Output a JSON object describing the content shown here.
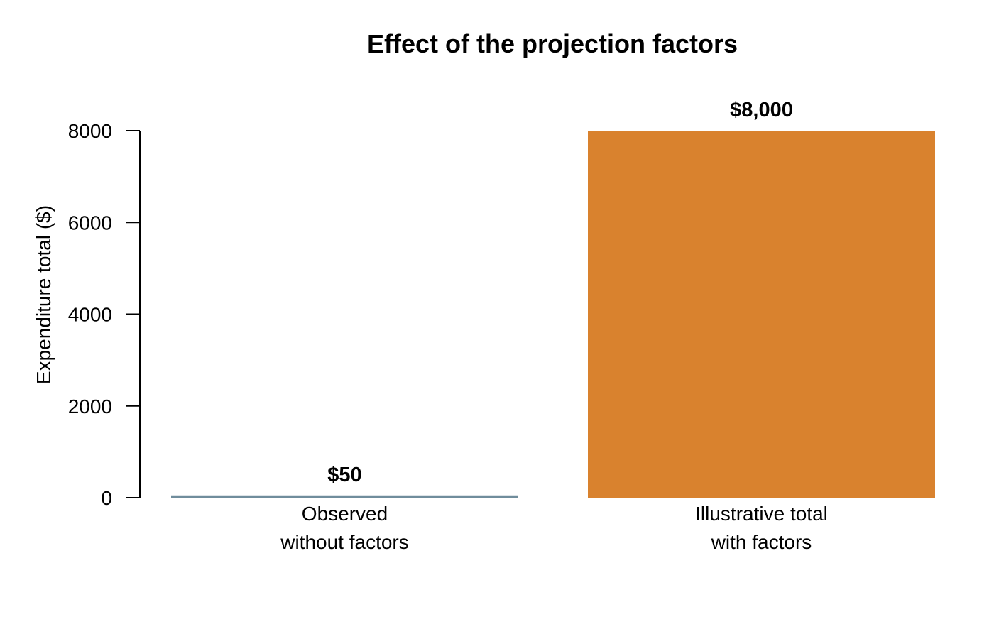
{
  "chart_data": {
    "type": "bar",
    "title": "Effect of the projection factors",
    "ylabel": "Expenditure total ($)",
    "xlabel": "",
    "ylim": [
      0,
      8000
    ],
    "yticks": [
      0,
      2000,
      4000,
      6000,
      8000
    ],
    "grid": false,
    "legend": "none",
    "categories": [
      [
        "Observed",
        "without factors"
      ],
      [
        "Illustrative total",
        "with factors"
      ]
    ],
    "values": [
      50,
      8000
    ],
    "data_labels": [
      "$50",
      "$8,000"
    ],
    "colors": [
      "#708d9c",
      "#d9822e"
    ]
  }
}
